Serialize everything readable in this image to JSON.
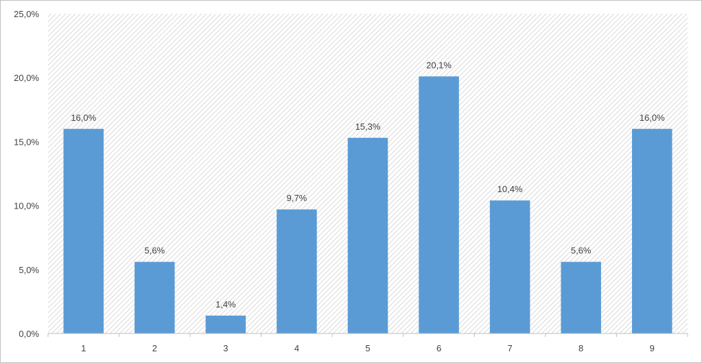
{
  "chart_data": {
    "type": "bar",
    "categories": [
      "1",
      "2",
      "3",
      "4",
      "5",
      "6",
      "7",
      "8",
      "9"
    ],
    "values": [
      16.0,
      5.6,
      1.4,
      9.7,
      15.3,
      20.1,
      10.4,
      5.6,
      16.0
    ],
    "data_labels": [
      "16,0%",
      "5,6%",
      "1,4%",
      "9,7%",
      "15,3%",
      "20,1%",
      "10,4%",
      "5,6%",
      "16,0%"
    ],
    "title": "",
    "xlabel": "",
    "ylabel": "",
    "ylim": [
      0,
      25
    ],
    "yticks": [
      0,
      5,
      10,
      15,
      20,
      25
    ],
    "ytick_labels": [
      "0,0%",
      "5,0%",
      "10,0%",
      "15,0%",
      "20,0%",
      "25,0%"
    ],
    "grid": false,
    "legend": "none",
    "plot_background": "diagonal-hatch",
    "colors": {
      "bar": "#5b9bd5",
      "axis": "#bfbfbf",
      "text": "#404040",
      "hatch": "#d9d9d9"
    }
  }
}
